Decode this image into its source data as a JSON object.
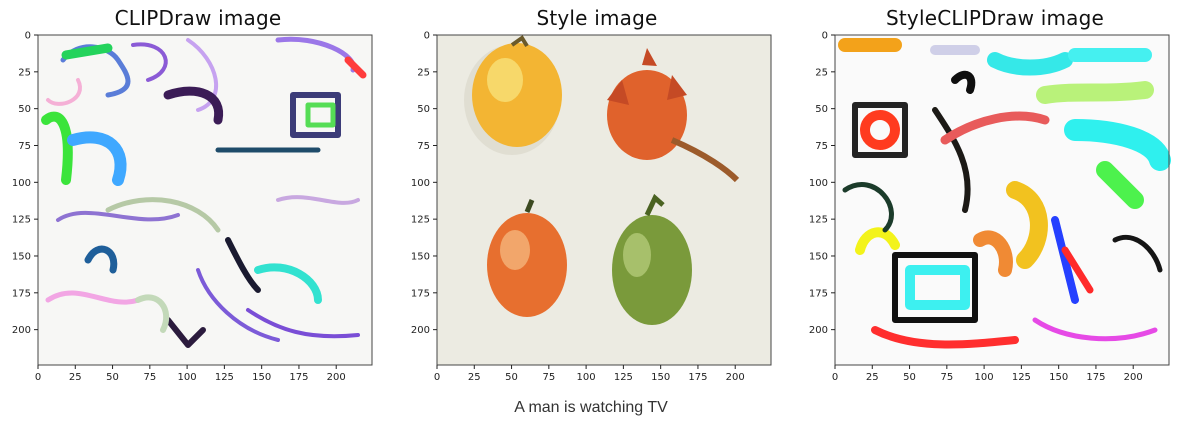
{
  "panels": [
    {
      "title": "CLIPDraw image",
      "x_ticks": [
        "0",
        "25",
        "50",
        "75",
        "100",
        "125",
        "150",
        "175",
        "200"
      ],
      "y_ticks": [
        "0",
        "25",
        "50",
        "75",
        "100",
        "125",
        "150",
        "175",
        "200"
      ]
    },
    {
      "title": "Style image",
      "x_ticks": [
        "0",
        "25",
        "50",
        "75",
        "100",
        "125",
        "150",
        "175",
        "200"
      ],
      "y_ticks": [
        "0",
        "25",
        "50",
        "75",
        "100",
        "125",
        "150",
        "175",
        "200"
      ]
    },
    {
      "title": "StyleCLIPDraw image",
      "x_ticks": [
        "0",
        "25",
        "50",
        "75",
        "100",
        "125",
        "150",
        "175",
        "200"
      ],
      "y_ticks": [
        "0",
        "25",
        "50",
        "75",
        "100",
        "125",
        "150",
        "175",
        "200"
      ]
    }
  ],
  "caption": "A man is watching TV",
  "colors": {
    "style_background": "#ecebe2",
    "pepper_yellow": "#f3b533",
    "pepper_red": "#e0622c",
    "pepper_orange": "#e76f2f",
    "pepper_green": "#7a9a3b"
  }
}
